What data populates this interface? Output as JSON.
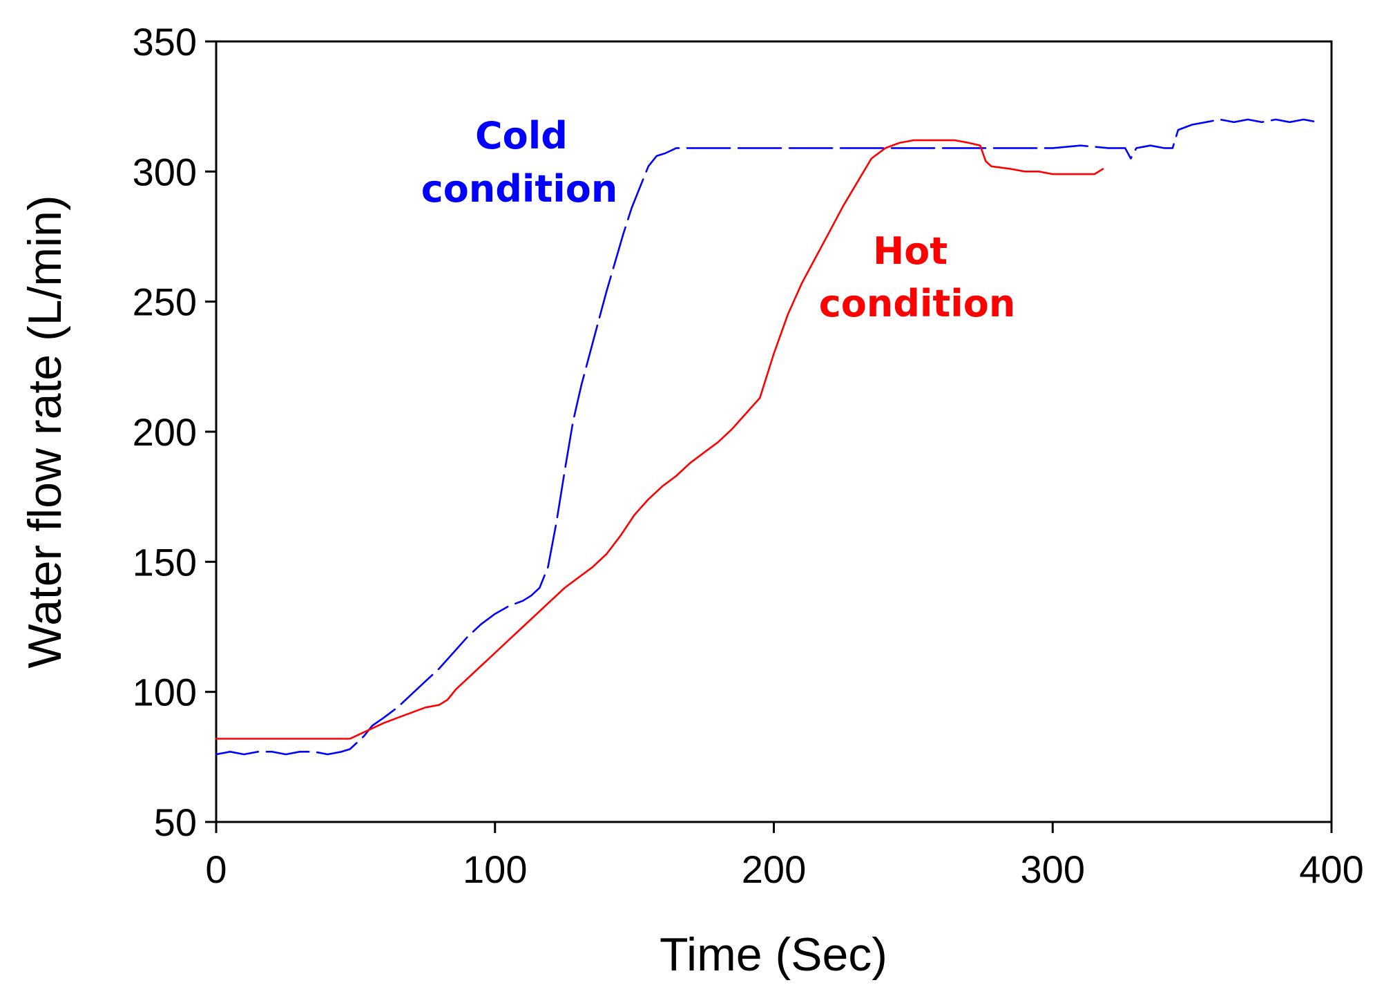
{
  "chart_data": {
    "type": "line",
    "title": "",
    "xlabel": "Time (Sec)",
    "ylabel": "Water flow rate (L/min)",
    "xlim": [
      0,
      400
    ],
    "ylim": [
      50,
      350
    ],
    "xticks": [
      0,
      100,
      200,
      300,
      400
    ],
    "yticks": [
      50,
      100,
      150,
      200,
      250,
      300,
      350
    ],
    "grid": false,
    "series": [
      {
        "name": "Cold condition",
        "color": "#0000ff",
        "line_style": "dashed",
        "x": [
          0,
          5,
          10,
          15,
          20,
          25,
          30,
          35,
          40,
          45,
          48,
          50,
          53,
          56,
          60,
          65,
          70,
          75,
          80,
          85,
          90,
          95,
          100,
          105,
          110,
          113,
          116,
          119,
          122,
          125,
          128,
          131,
          134,
          137,
          140,
          143,
          146,
          149,
          152,
          155,
          158,
          161,
          165,
          170,
          180,
          190,
          200,
          210,
          220,
          230,
          240,
          250,
          260,
          270,
          280,
          290,
          300,
          310,
          320,
          326,
          328,
          330,
          335,
          340,
          343,
          345,
          350,
          355,
          360,
          365,
          370,
          375,
          380,
          385,
          390,
          395
        ],
        "y": [
          76,
          77,
          76,
          77,
          77,
          76,
          77,
          77,
          76,
          77,
          78,
          80,
          83,
          87,
          90,
          94,
          99,
          104,
          109,
          115,
          121,
          126,
          130,
          133,
          135,
          137,
          140,
          148,
          165,
          185,
          204,
          218,
          230,
          242,
          254,
          265,
          276,
          286,
          294,
          302,
          306,
          307,
          309,
          309,
          309,
          309,
          309,
          309,
          309,
          309,
          309,
          309,
          309,
          309,
          309,
          309,
          309,
          310,
          309,
          309,
          305,
          309,
          310,
          309,
          309,
          316,
          318,
          319,
          320,
          319,
          320,
          319,
          320,
          319,
          320,
          319
        ]
      },
      {
        "name": "Hot condition",
        "color": "#ff0000",
        "line_style": "solid",
        "x": [
          0,
          5,
          10,
          15,
          20,
          25,
          30,
          35,
          40,
          45,
          48,
          52,
          56,
          60,
          65,
          70,
          75,
          80,
          83,
          86,
          90,
          95,
          100,
          105,
          110,
          115,
          120,
          125,
          130,
          135,
          140,
          145,
          150,
          155,
          160,
          165,
          170,
          175,
          180,
          185,
          190,
          195,
          200,
          205,
          210,
          215,
          220,
          225,
          230,
          235,
          240,
          245,
          250,
          255,
          260,
          265,
          270,
          274,
          276,
          278,
          285,
          290,
          295,
          300,
          305,
          310,
          315,
          318
        ],
        "y": [
          82,
          82,
          82,
          82,
          82,
          82,
          82,
          82,
          82,
          82,
          82,
          84,
          86,
          88,
          90,
          92,
          94,
          95,
          97,
          101,
          105,
          110,
          115,
          120,
          125,
          130,
          135,
          140,
          144,
          148,
          153,
          160,
          168,
          174,
          179,
          183,
          188,
          192,
          196,
          201,
          207,
          213,
          230,
          245,
          257,
          267,
          277,
          287,
          296,
          305,
          309,
          311,
          312,
          312,
          312,
          312,
          311,
          310,
          304,
          302,
          301,
          300,
          300,
          299,
          299,
          299,
          299,
          301
        ]
      }
    ],
    "annotations": [
      {
        "series": "Cold condition",
        "lines": [
          "Cold",
          "condition"
        ],
        "color": "#0000ff"
      },
      {
        "series": "Hot condition",
        "lines": [
          "Hot",
          "condition"
        ],
        "color": "#ff0000"
      }
    ]
  }
}
